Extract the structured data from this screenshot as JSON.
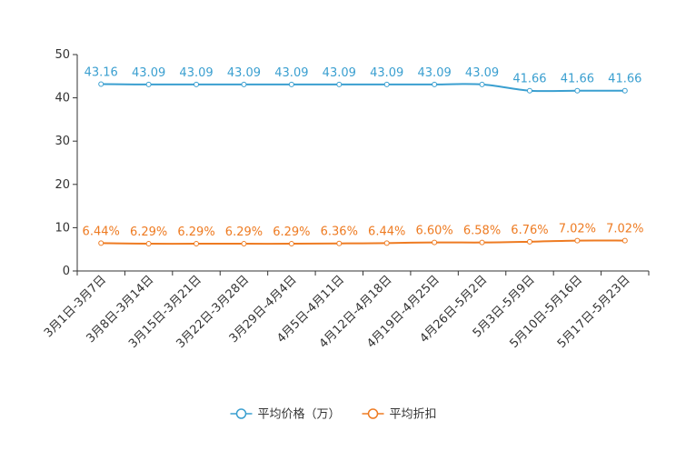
{
  "chart_data": {
    "type": "line",
    "title": "",
    "xlabel": "",
    "ylabel": "",
    "ylim": [
      0,
      50
    ],
    "yticks": [
      0,
      10,
      20,
      30,
      40,
      50
    ],
    "grid": false,
    "legend_position": "bottom-center",
    "categories": [
      "3月1日-3月7日",
      "3月8日-3月14日",
      "3月15日-3月21日",
      "3月22日-3月28日",
      "3月29日-4月4日",
      "4月5日-4月11日",
      "4月12日-4月18日",
      "4月19日-4月25日",
      "4月26日-5月2日",
      "5月3日-5月9日",
      "5月10日-5月16日",
      "5月17日-5月23日"
    ],
    "series": [
      {
        "name": "平均价格（万）",
        "color": "#3a9fd0",
        "values": [
          43.16,
          43.09,
          43.09,
          43.09,
          43.09,
          43.09,
          43.09,
          43.09,
          43.09,
          41.66,
          41.66,
          41.66
        ],
        "labels": [
          "43.16",
          "43.09",
          "43.09",
          "43.09",
          "43.09",
          "43.09",
          "43.09",
          "43.09",
          "43.09",
          "41.66",
          "41.66",
          "41.66"
        ]
      },
      {
        "name": "平均折扣",
        "color": "#ee7b22",
        "values": [
          6.44,
          6.29,
          6.29,
          6.29,
          6.29,
          6.36,
          6.44,
          6.6,
          6.58,
          6.76,
          7.02,
          7.02
        ],
        "labels": [
          "6.44%",
          "6.29%",
          "6.29%",
          "6.29%",
          "6.29%",
          "6.36%",
          "6.44%",
          "6.60%",
          "6.58%",
          "6.76%",
          "7.02%",
          "7.02%"
        ]
      }
    ]
  }
}
